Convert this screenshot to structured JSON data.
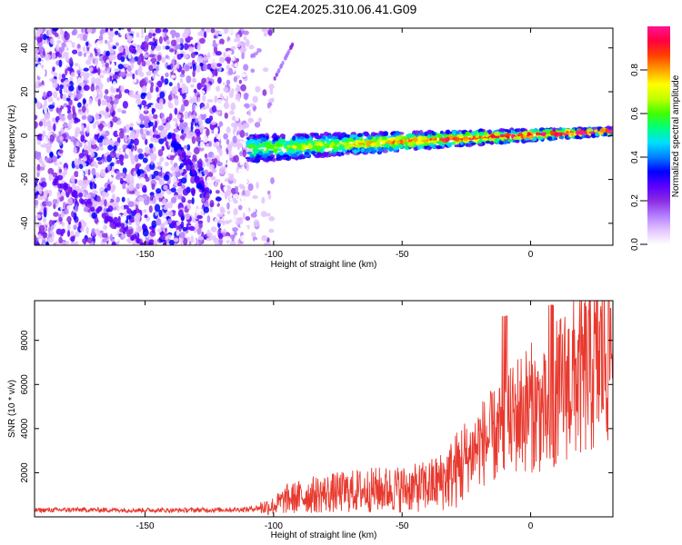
{
  "title": "C2E4.2025.310.06.41.G09",
  "chart_data": [
    {
      "type": "heatmap",
      "title": "C2E4.2025.310.06.41.G09",
      "xlabel": "Height of straight line (km)",
      "ylabel": "Frequency (Hz)",
      "xlim": [
        -193,
        32
      ],
      "ylim": [
        -50,
        49
      ],
      "x_ticks": [
        -150,
        -100,
        -50,
        0
      ],
      "y_ticks": [
        -40,
        -20,
        0,
        20,
        40
      ],
      "colorbar": {
        "label": "Normalized spectral amplitude",
        "range": [
          0,
          1
        ],
        "ticks": [
          0.0,
          0.2,
          0.4,
          0.6,
          0.8
        ],
        "colormap": [
          "#ffffff",
          "#e3c2ff",
          "#b27dff",
          "#8a2be2",
          "#5a00ff",
          "#0000ff",
          "#0080ff",
          "#00e0ff",
          "#00ff80",
          "#40ff00",
          "#c0ff00",
          "#ffff00",
          "#ffa000",
          "#ff4000",
          "#ff0040",
          "#ff1493"
        ]
      },
      "features": [
        {
          "region": "noise field",
          "x_range": [
            -193,
            -110
          ],
          "y_range": [
            -50,
            49
          ],
          "amplitude": 0.12
        },
        {
          "region": "diagonal streak",
          "from": [
            -140,
            0
          ],
          "to": [
            -126,
            -27
          ],
          "amplitude": 0.3
        },
        {
          "region": "carrier band",
          "from": [
            -110,
            -6
          ],
          "to": [
            32,
            2
          ],
          "amplitude": 0.9
        }
      ]
    },
    {
      "type": "line",
      "xlabel": "Height of straight line (km)",
      "ylabel": "SNR (10 * v/v)",
      "xlim": [
        -193,
        32
      ],
      "ylim": [
        0,
        9800
      ],
      "x_ticks": [
        -150,
        -100,
        -50,
        0
      ],
      "y_ticks": [
        2000,
        4000,
        6000,
        8000
      ],
      "color": "#e8392e",
      "series": [
        {
          "x": [
            -193,
            -180,
            -160,
            -140,
            -120,
            -110,
            -100,
            -95,
            -85,
            -75,
            -65,
            -55,
            -45,
            -40,
            -35,
            -30,
            -25,
            -20,
            -15,
            -10,
            -5,
            0,
            5,
            8,
            10,
            15,
            20,
            25,
            30,
            32
          ],
          "y": [
            300,
            320,
            310,
            300,
            320,
            340,
            500,
            800,
            1000,
            1100,
            1200,
            1250,
            1300,
            1400,
            1600,
            2000,
            2600,
            3300,
            3600,
            3900,
            4700,
            5000,
            4800,
            3800,
            5600,
            6200,
            6400,
            6800,
            7600,
            8200
          ]
        }
      ]
    }
  ]
}
